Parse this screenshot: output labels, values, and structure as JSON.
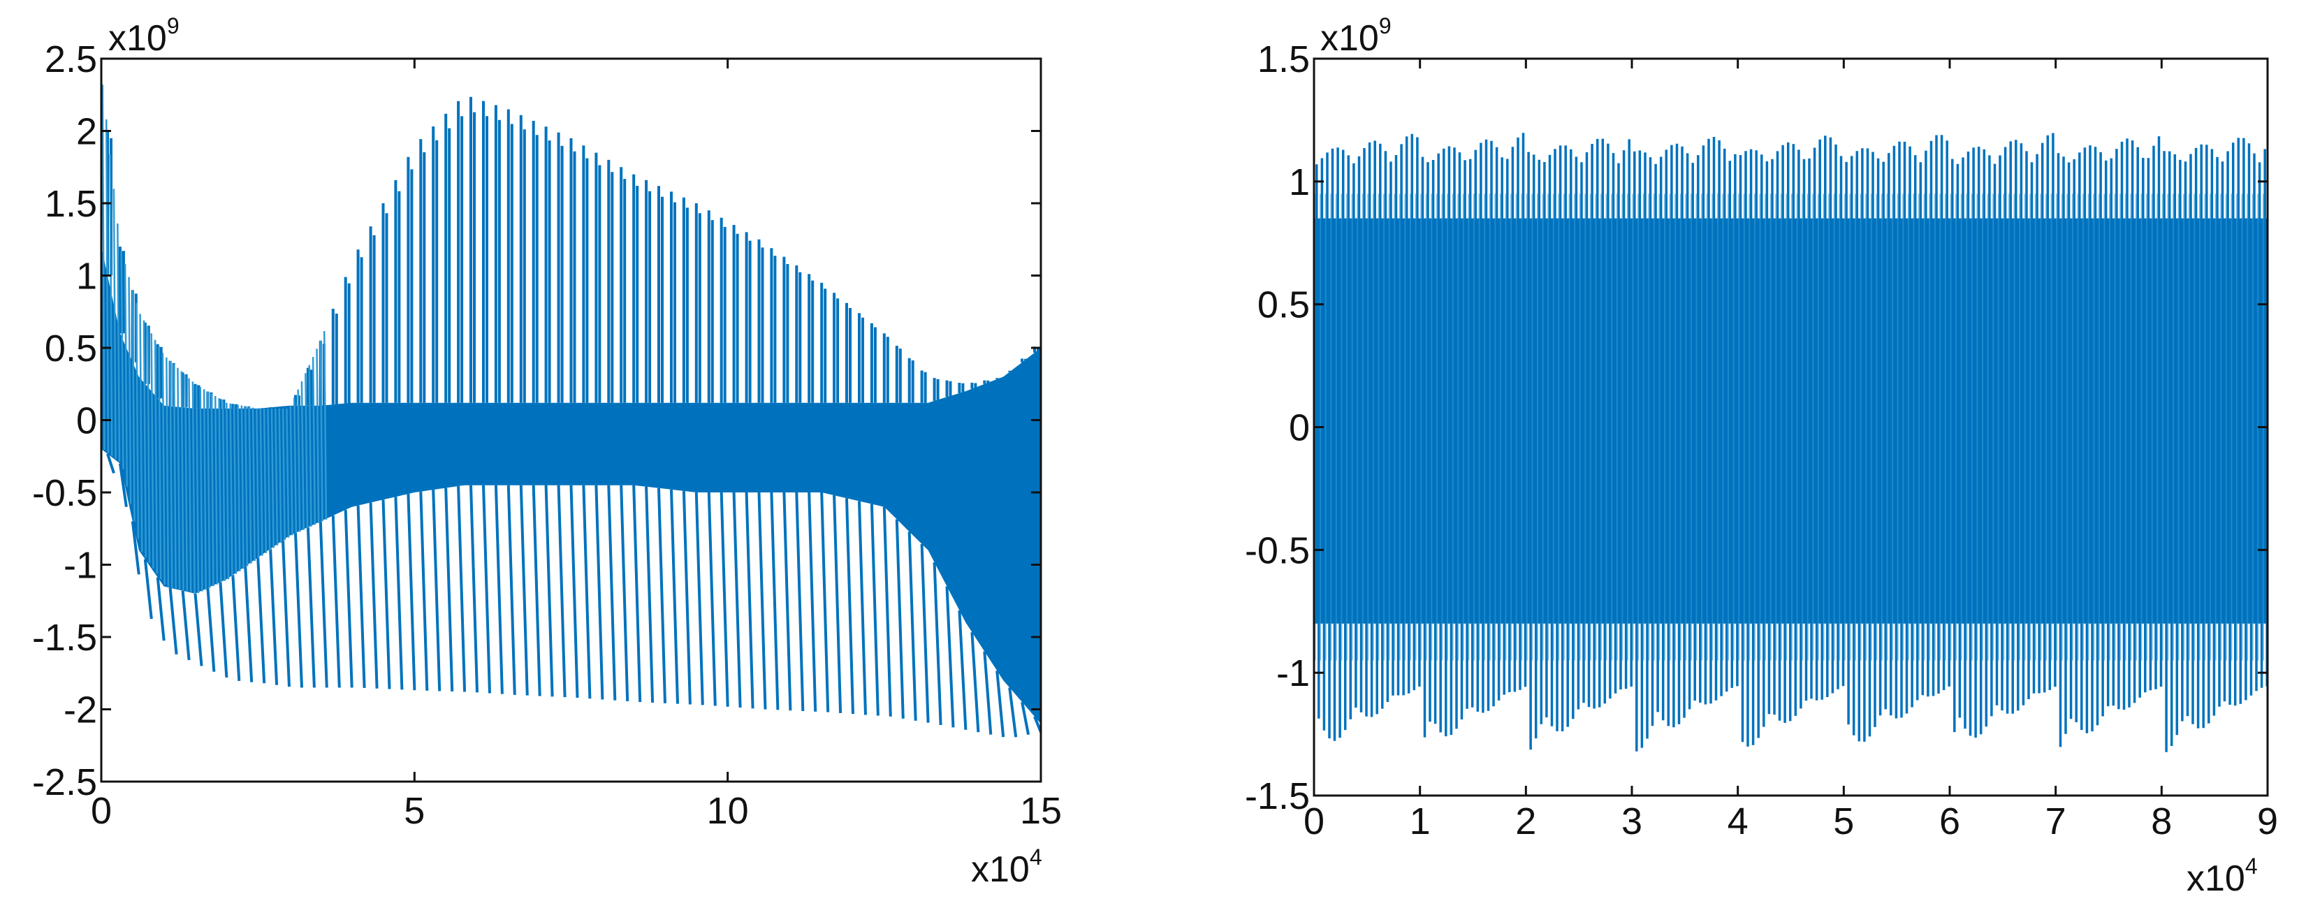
{
  "colors": {
    "series": "#0072BD",
    "series_light": "#2f9ad6",
    "axis": "#111111",
    "background": "#ffffff"
  },
  "chart_data": [
    {
      "type": "line",
      "title": "",
      "xlabel": "",
      "ylabel": "",
      "xlim": [
        0,
        15
      ],
      "ylim": [
        -2.5,
        2.5
      ],
      "x_multiplier": {
        "base": "x10",
        "exponent": "4"
      },
      "y_multiplier": {
        "base": "x10",
        "exponent": "9"
      },
      "x_ticks": [
        0,
        5,
        10,
        15
      ],
      "x_tick_labels": [
        "0",
        "5",
        "10",
        "15"
      ],
      "y_ticks": [
        2.5,
        2,
        1.5,
        1,
        0.5,
        0,
        -0.5,
        -1,
        -1.5,
        -2,
        -2.5
      ],
      "y_tick_labels": [
        "2.5",
        "2",
        "1.5",
        "1",
        "0.5",
        "0",
        "-0.5",
        "-1",
        "-1.5",
        "-2",
        "-2.5"
      ],
      "grid": false,
      "legend": "none",
      "series": [
        {
          "envelope_x": [
            0,
            0.3,
            0.6,
            1.0,
            1.5,
            2.0,
            2.5,
            3.0,
            3.5,
            4.0,
            5.0,
            5.8,
            6.5,
            7.5,
            8.5,
            9.5,
            10.5,
            11.5,
            12.5,
            13.2,
            13.8,
            14.4,
            15.0
          ],
          "upper_peak": [
            2.4,
            1.2,
            0.75,
            0.45,
            0.25,
            0.12,
            0.08,
            0.08,
            0.55,
            1.1,
            1.9,
            2.25,
            2.15,
            1.95,
            1.7,
            1.5,
            1.25,
            0.95,
            0.6,
            0.3,
            0.25,
            0.3,
            0.55
          ],
          "upper_dense": [
            1.2,
            0.6,
            0.3,
            0.1,
            0.08,
            0.08,
            0.08,
            0.1,
            0.1,
            0.12,
            0.12,
            0.12,
            0.12,
            0.12,
            0.12,
            0.12,
            0.12,
            0.12,
            0.12,
            0.12,
            0.2,
            0.3,
            0.5
          ],
          "lower_dense": [
            -0.2,
            -0.3,
            -0.9,
            -1.15,
            -1.2,
            -1.1,
            -0.95,
            -0.8,
            -0.7,
            -0.6,
            -0.5,
            -0.45,
            -0.45,
            -0.45,
            -0.45,
            -0.5,
            -0.5,
            -0.5,
            -0.6,
            -0.9,
            -1.4,
            -1.8,
            -2.1
          ],
          "lower_trough": [
            -0.25,
            -0.6,
            -1.3,
            -1.6,
            -1.7,
            -1.8,
            -1.82,
            -1.85,
            -1.85,
            -1.85,
            -1.87,
            -1.88,
            -1.9,
            -1.92,
            -1.95,
            -1.97,
            -2.0,
            -2.02,
            -2.05,
            -2.1,
            -2.15,
            -2.2,
            -2.15
          ]
        }
      ]
    },
    {
      "type": "line",
      "title": "",
      "xlabel": "",
      "ylabel": "",
      "xlim": [
        0,
        9
      ],
      "ylim": [
        -1.5,
        1.5
      ],
      "x_multiplier": {
        "base": "x10",
        "exponent": "4"
      },
      "y_multiplier": {
        "base": "x10",
        "exponent": "9"
      },
      "x_ticks": [
        0,
        1,
        2,
        3,
        4,
        5,
        6,
        7,
        8,
        9
      ],
      "x_tick_labels": [
        "0",
        "1",
        "2",
        "3",
        "4",
        "5",
        "6",
        "7",
        "8",
        "9"
      ],
      "y_ticks": [
        1.5,
        1,
        0.5,
        0,
        -0.5,
        -1,
        -1.5
      ],
      "y_tick_labels": [
        "1.5",
        "1",
        "0.5",
        "0",
        "-0.5",
        "-1",
        "-1.5"
      ],
      "grid": false,
      "legend": "none",
      "series": [
        {
          "dense_band": [
            -0.8,
            0.85
          ],
          "upper_peak_range": [
            1.0,
            1.2
          ],
          "lower_trough_range": [
            -1.05,
            -1.33
          ],
          "sawtooth_period": 1.0
        }
      ]
    }
  ]
}
